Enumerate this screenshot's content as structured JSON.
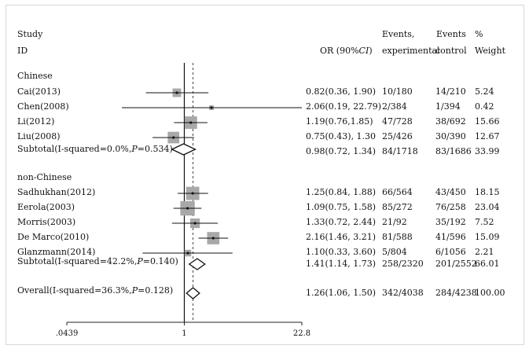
{
  "headers": {
    "study": "Study",
    "id": "ID",
    "or": "OR (90%",
    "or_ci": "CI",
    "or_close": ")",
    "events_label": "Events,",
    "events2_label": "Events",
    "pct_label": "%",
    "experimental": "experimental",
    "control": "control",
    "weight": "Weight"
  },
  "chart_data": {
    "type": "forest",
    "axis": {
      "scale": "log",
      "ticks": [
        0.0439,
        1,
        22.8
      ],
      "tick_labels": [
        ".0439",
        "1",
        "22.8"
      ],
      "null_line": 1,
      "overall_line": 1.26
    },
    "groups": [
      {
        "name": "Chinese",
        "studies": [
          {
            "id": "Cai(2013)",
            "or": 0.82,
            "lo": 0.36,
            "hi": 1.9,
            "or_text": "0.82(0.36, 1.90)",
            "exp": "10/180",
            "ctl": "14/210",
            "weight": 5.24,
            "weight_text": "5.24"
          },
          {
            "id": "Chen(2008)",
            "or": 2.06,
            "lo": 0.19,
            "hi": 22.79,
            "or_text": "2.06(0.19, 22.79)",
            "exp": "2/384",
            "ctl": "1/394",
            "weight": 0.42,
            "weight_text": "0.42"
          },
          {
            "id": "Li(2012)",
            "or": 1.19,
            "lo": 0.76,
            "hi": 1.85,
            "or_text": "1.19(0.76,1.85)",
            "exp": "47/728",
            "ctl": "38/692",
            "weight": 15.66,
            "weight_text": "15.66"
          },
          {
            "id": "Liu(2008)",
            "or": 0.75,
            "lo": 0.43,
            "hi": 1.3,
            "or_text": "0.75(0.43), 1.30",
            "exp": "25/426",
            "ctl": "30/390",
            "weight": 12.67,
            "weight_text": "12.67"
          }
        ],
        "subtotal": {
          "label": "Subtotal(I-squared=0.0%,",
          "p_label": "P",
          "p_value": "=0.534)",
          "or": 0.98,
          "lo": 0.72,
          "hi": 1.34,
          "or_text": "0.98(0.72, 1.34)",
          "exp": "84/1718",
          "ctl": "83/1686",
          "weight_text": "33.99"
        }
      },
      {
        "name": "non-Chinese",
        "studies": [
          {
            "id": "Sadhukhan(2012)",
            "or": 1.25,
            "lo": 0.84,
            "hi": 1.88,
            "or_text": "1.25(0.84, 1.88)",
            "exp": "66/564",
            "ctl": "43/450",
            "weight": 18.15,
            "weight_text": "18.15"
          },
          {
            "id": "Eerola(2003)",
            "or": 1.09,
            "lo": 0.75,
            "hi": 1.58,
            "or_text": "1.09(0.75, 1.58)",
            "exp": "85/272",
            "ctl": "76/258",
            "weight": 23.04,
            "weight_text": "23.04"
          },
          {
            "id": "Morris(2003)",
            "or": 1.33,
            "lo": 0.72,
            "hi": 2.44,
            "or_text": "1.33(0.72, 2.44)",
            "exp": "21/92",
            "ctl": "35/192",
            "weight": 7.52,
            "weight_text": "7.52"
          },
          {
            "id": "De Marco(2010)",
            "or": 2.16,
            "lo": 1.46,
            "hi": 3.21,
            "or_text": "2.16(1.46, 3.21)",
            "exp": "81/588",
            "ctl": "41/596",
            "weight": 15.09,
            "weight_text": "15.09"
          },
          {
            "id": "Glanzmann(2014)",
            "or": 1.1,
            "lo": 0.33,
            "hi": 3.6,
            "or_text": "1.10(0.33, 3.60)",
            "exp": "5/804",
            "ctl": "6/1056",
            "weight": 2.21,
            "weight_text": "2.21"
          }
        ],
        "subtotal": {
          "label": "Subtotal(I-squared=42.2%,",
          "p_label": "P",
          "p_value": "=0.140)",
          "or": 1.41,
          "lo": 1.14,
          "hi": 1.73,
          "or_text": "1.41(1.14, 1.73)",
          "exp": "258/2320",
          "ctl": "201/2552",
          "weight_text": "66.01"
        }
      }
    ],
    "overall": {
      "label": "Overall(I-squared=36.3%,",
      "p_label": "P",
      "p_value": "=0.128)",
      "or": 1.26,
      "lo": 1.06,
      "hi": 1.5,
      "or_text": "1.26(1.06, 1.50)",
      "exp": "342/4038",
      "ctl": "284/4238",
      "weight_text": "100.00"
    }
  }
}
